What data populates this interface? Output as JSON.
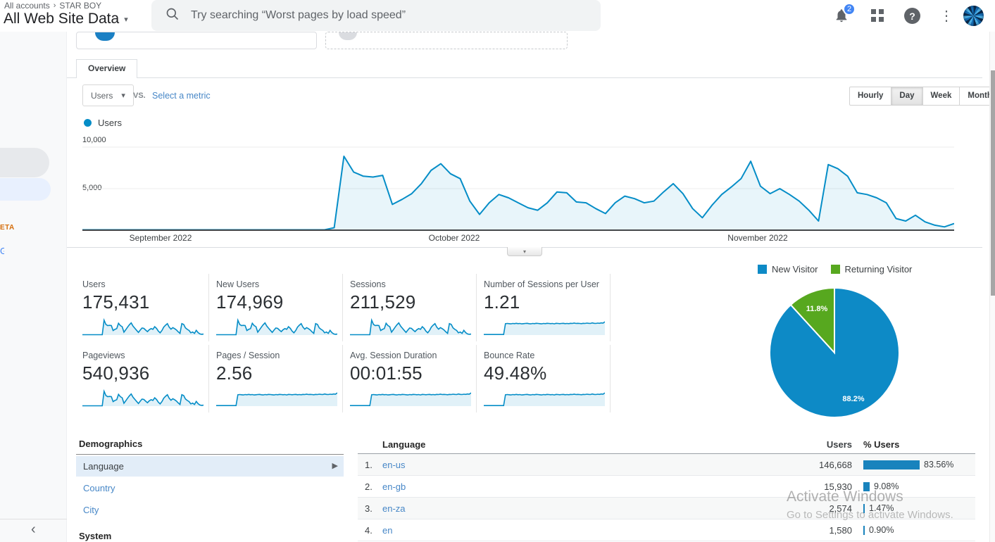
{
  "header": {
    "breadcrumb": {
      "root": "All accounts",
      "separator": "›",
      "account": "STAR BOY"
    },
    "title": "All Web Site Data",
    "search": {
      "placeholder": "Try searching “Worst pages by load speed”"
    },
    "notifications_badge": "2",
    "help_glyph": "?"
  },
  "sidebar": {
    "beta_fragment": "ETA",
    "collapse_glyph": "‹"
  },
  "tabs": {
    "overview": "Overview"
  },
  "controls": {
    "metric_dropdown": "Users",
    "vs_label": "VS.",
    "compare_link": "Select a metric",
    "granularity": [
      "Hourly",
      "Day",
      "Week",
      "Month"
    ],
    "active_granularity": "Day"
  },
  "legend": {
    "series": "Users"
  },
  "chart_data": [
    {
      "type": "area",
      "name": "users-over-time",
      "title": "Users",
      "ylabel": "Users",
      "ylim": [
        0,
        10000
      ],
      "grid": true,
      "yticks": [
        {
          "label": "10,000",
          "value": 10000
        },
        {
          "label": "5,000",
          "value": 5000
        }
      ],
      "x_months": [
        {
          "label": "September 2022",
          "x": 228
        },
        {
          "label": "October 2022",
          "x": 645
        },
        {
          "label": "November 2022",
          "x": 1076
        }
      ],
      "x_range": [
        "2022-09-01",
        "2022-11-30"
      ],
      "values": [
        40,
        40,
        40,
        40,
        40,
        40,
        40,
        40,
        40,
        40,
        40,
        40,
        40,
        40,
        40,
        40,
        40,
        40,
        40,
        40,
        40,
        40,
        40,
        40,
        40,
        40,
        300,
        8900,
        7000,
        6500,
        6400,
        6600,
        3100,
        3700,
        4400,
        5600,
        7200,
        8000,
        6800,
        6200,
        3500,
        1900,
        3300,
        4300,
        3900,
        3300,
        2700,
        2400,
        3300,
        4600,
        4500,
        3400,
        3300,
        2600,
        2000,
        3300,
        4100,
        3800,
        3300,
        3500,
        4600,
        5600,
        4400,
        2600,
        1500,
        3000,
        4300,
        5200,
        6200,
        8300,
        5300,
        4400,
        5000,
        4300,
        3500,
        2400,
        1100,
        7900,
        7400,
        6500,
        4500,
        4300,
        3900,
        3300,
        1400,
        1100,
        1800,
        1000,
        600,
        400,
        800
      ]
    },
    {
      "type": "pie",
      "name": "visitor-split",
      "legend_position": "top",
      "slices": [
        {
          "label": "New Visitor",
          "pct": 88.2,
          "value_label": "88.2%",
          "color": "#0d8ac6"
        },
        {
          "label": "Returning Visitor",
          "pct": 11.8,
          "value_label": "11.8%",
          "color": "#57a81f"
        }
      ]
    },
    {
      "type": "table",
      "name": "language-breakdown",
      "headers": {
        "dimension": "Language",
        "users": "Users",
        "pct_users": "% Users"
      },
      "rows": [
        {
          "rank": "1.",
          "language": "en-us",
          "users": "146,668",
          "pct_label": "83.56%",
          "pct": 83.56
        },
        {
          "rank": "2.",
          "language": "en-gb",
          "users": "15,930",
          "pct_label": "9.08%",
          "pct": 9.08
        },
        {
          "rank": "3.",
          "language": "en-za",
          "users": "2,574",
          "pct_label": "1.47%",
          "pct": 1.47
        },
        {
          "rank": "4.",
          "language": "en",
          "users": "1,580",
          "pct_label": "0.90%",
          "pct": 0.9
        }
      ]
    }
  ],
  "scorecards": [
    {
      "label": "Users",
      "value": "175,431",
      "spark": "spiky"
    },
    {
      "label": "New Users",
      "value": "174,969",
      "spark": "spiky"
    },
    {
      "label": "Sessions",
      "value": "211,529",
      "spark": "spiky"
    },
    {
      "label": "Number of Sessions per User",
      "value": "1.21",
      "spark": "step"
    },
    {
      "label": "Pageviews",
      "value": "540,936",
      "spark": "spiky"
    },
    {
      "label": "Pages / Session",
      "value": "2.56",
      "spark": "step"
    },
    {
      "label": "Avg. Session Duration",
      "value": "00:01:55",
      "spark": "step"
    },
    {
      "label": "Bounce Rate",
      "value": "49.48%",
      "spark": "step"
    }
  ],
  "sparklines": {
    "spiky": [
      2,
      2,
      2,
      2,
      2,
      2,
      2,
      2,
      2,
      2,
      2,
      2,
      78,
      56,
      50,
      51,
      50,
      24,
      30,
      34,
      62,
      50,
      44,
      15,
      28,
      42,
      54,
      64,
      47,
      36,
      25,
      14,
      26,
      37,
      35,
      26,
      18,
      28,
      34,
      30,
      44,
      35,
      21,
      12,
      24,
      42,
      52,
      60,
      42,
      31,
      39,
      34,
      27,
      17,
      9,
      60,
      56,
      38,
      30,
      24,
      12,
      16,
      9,
      25,
      13,
      6,
      4,
      5
    ],
    "step": [
      3,
      3,
      3,
      3,
      3,
      3,
      3,
      3,
      3,
      3,
      3,
      3,
      60,
      61,
      60,
      59,
      61,
      60,
      62,
      60,
      61,
      59,
      60,
      61,
      62,
      60,
      59,
      61,
      60,
      62,
      61,
      60,
      59,
      61,
      60,
      62,
      61,
      60,
      61,
      59,
      62,
      61,
      60,
      61,
      62,
      60,
      61,
      60,
      62,
      61,
      63,
      61,
      62,
      61,
      60,
      62,
      61,
      63,
      62,
      61,
      64,
      62,
      61,
      63,
      62,
      64,
      63,
      70
    ]
  },
  "demographics": {
    "title": "Demographics",
    "items": [
      {
        "label": "Language",
        "selected": true
      },
      {
        "label": "Country",
        "selected": false
      },
      {
        "label": "City",
        "selected": false
      }
    ],
    "system_title": "System"
  },
  "watermark": {
    "line1": "Activate Windows",
    "line2": "Go to Settings to activate Windows."
  },
  "colors": {
    "chart_blue": "#058dc7",
    "pie_blue": "#0d8ac6",
    "pie_green": "#57a81f",
    "bar_blue": "#1983bd",
    "link_blue": "#4787c7",
    "badge_blue": "#4285f4",
    "selected_row_bg": "#e2edf8"
  }
}
